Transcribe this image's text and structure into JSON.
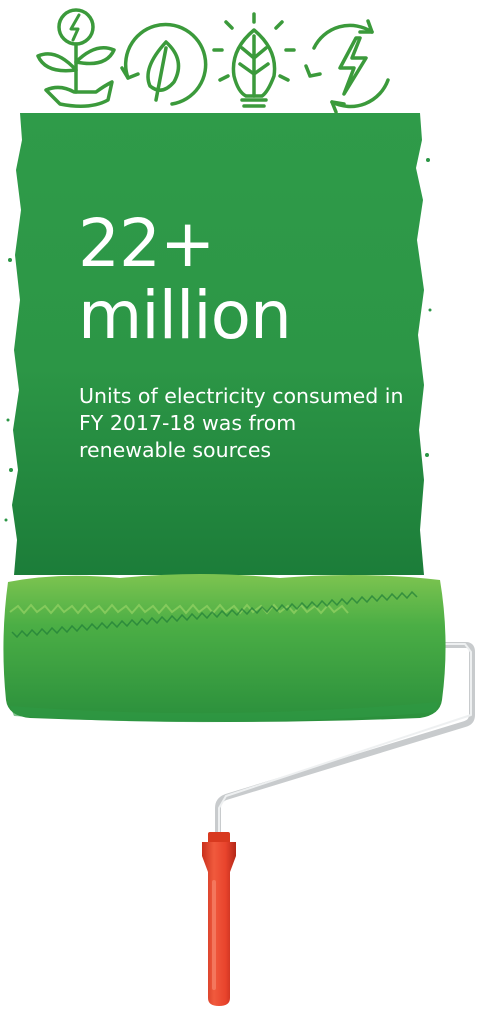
{
  "headline": {
    "line1": "22+",
    "line2": "million"
  },
  "caption": "Units of electricity consumed in FY 2017-18 was from renewable sources",
  "icons": [
    "plant-hand-bolt-icon",
    "leaf-circle-icon",
    "leaf-bulb-icon",
    "bolt-recycle-icon"
  ],
  "colors": {
    "paint_green": "#2e9a48",
    "paint_dark": "#1b7f3a",
    "roller_green": "#3da545",
    "grass_light": "#6abf4b",
    "icon_green": "#3b9a3b",
    "handle_red": "#e8432c",
    "frame_grey": "#cfd2d4"
  }
}
